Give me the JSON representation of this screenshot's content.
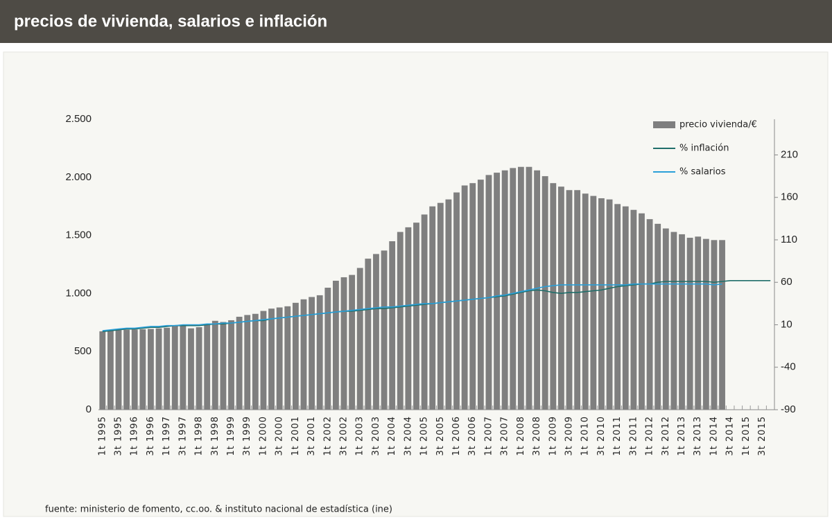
{
  "header": {
    "title": "precios de vivienda, salarios e inflación"
  },
  "chart_data": {
    "type": "bar-line",
    "categories": [
      "1t 1995",
      null,
      "3t 1995",
      null,
      "1t 1996",
      null,
      "3t 1996",
      null,
      "1t 1997",
      null,
      "3t 1997",
      null,
      "1t 1998",
      null,
      "3t 1998",
      null,
      "1t 1999",
      null,
      "3t 1999",
      null,
      "1t 2000",
      null,
      "3t 2000",
      null,
      "1t 2001",
      null,
      "3t 2001",
      null,
      "1t 2002",
      null,
      "3t 2002",
      null,
      "1t 2003",
      null,
      "3t 2003",
      null,
      "1t 2004",
      null,
      "3t 2004",
      null,
      "1t 2005",
      null,
      "3t 2005",
      null,
      "1t 2006",
      null,
      "3t 2006",
      null,
      "1t 2007",
      null,
      "3t 2007",
      null,
      "1t 2008",
      null,
      "3t 2008",
      null,
      "1t 2009",
      null,
      "3t 2009",
      null,
      "1t 2010",
      null,
      "3t 2010",
      null,
      "1t 2011",
      null,
      "3t 2011",
      null,
      "1t 2012",
      null,
      "3t 2012",
      null,
      "1t 2013",
      null,
      "3t 2013",
      null,
      "1t 2014",
      null,
      "3t 2014",
      null,
      "1t 2015",
      null,
      "3t 2015",
      null
    ],
    "series": [
      {
        "name": "precio vivienda/€",
        "type": "bar",
        "color": "#7f7f7f",
        "values": [
          675,
          680,
          685,
          688,
          690,
          692,
          695,
          700,
          705,
          720,
          725,
          700,
          710,
          740,
          765,
          755,
          770,
          800,
          815,
          825,
          850,
          870,
          880,
          890,
          920,
          950,
          970,
          985,
          1050,
          1110,
          1140,
          1160,
          1220,
          1300,
          1340,
          1370,
          1450,
          1530,
          1570,
          1610,
          1680,
          1750,
          1780,
          1810,
          1870,
          1930,
          1950,
          1980,
          2020,
          2040,
          2060,
          2080,
          2090,
          2090,
          2060,
          2010,
          1950,
          1920,
          1890,
          1890,
          1860,
          1840,
          1820,
          1810,
          1770,
          1750,
          1720,
          1690,
          1640,
          1600,
          1560,
          1530,
          1510,
          1480,
          1490,
          1470,
          1460,
          1460,
          null,
          null,
          null,
          null,
          null,
          null
        ]
      },
      {
        "name": "% inflación",
        "type": "line",
        "axis": "y2",
        "color": "#1f6e6a",
        "values": [
          2,
          3,
          4,
          5,
          5,
          6,
          7,
          7,
          8,
          9,
          9,
          9,
          9,
          10,
          11,
          11,
          12,
          13,
          14,
          15,
          15,
          17,
          18,
          19,
          20,
          21,
          22,
          23,
          24,
          25,
          26,
          26,
          27,
          28,
          29,
          29,
          30,
          31,
          32,
          33,
          34,
          35,
          36,
          37,
          38,
          39,
          40,
          41,
          42,
          43,
          44,
          46,
          48,
          50,
          51,
          50,
          48,
          47,
          48,
          48,
          49,
          50,
          51,
          53,
          55,
          56,
          57,
          58,
          58,
          60,
          61,
          61,
          61,
          61,
          61,
          61,
          60,
          61,
          62,
          62,
          62,
          62,
          62,
          62
        ]
      },
      {
        "name": "% salarios",
        "type": "line",
        "axis": "y2",
        "color": "#2a9fd8",
        "values": [
          3,
          4,
          5,
          6,
          6,
          7,
          8,
          8,
          9,
          9,
          10,
          10,
          10,
          11,
          11,
          12,
          12,
          13,
          14,
          15,
          16,
          17,
          18,
          19,
          20,
          21,
          22,
          23,
          24,
          25,
          26,
          27,
          28,
          29,
          30,
          31,
          31,
          32,
          33,
          34,
          35,
          35,
          36,
          37,
          38,
          39,
          40,
          41,
          42,
          44,
          45,
          47,
          49,
          51,
          53,
          55,
          56,
          57,
          57,
          57,
          57,
          57,
          57,
          57,
          57,
          57,
          58,
          58,
          58,
          58,
          58,
          58,
          58,
          58,
          58,
          58,
          57,
          58,
          null,
          null,
          null,
          null,
          null,
          null
        ]
      }
    ],
    "ylim": [
      0,
      2500
    ],
    "yticks": [
      0,
      500,
      {
        "value": 1000,
        "label": "1.000"
      },
      {
        "value": 1500,
        "label": "1.500"
      },
      {
        "value": 2000,
        "label": "2.000"
      },
      {
        "value": 2500,
        "label": "2.500"
      }
    ],
    "y2lim": [
      -90,
      252
    ],
    "y2ticks": [
      -90,
      -40,
      10,
      60,
      110,
      160,
      210
    ],
    "legend": "top-right",
    "source": "fuente: ministerio de fomento, cc.oo. & instituto nacional de estadística (ine)"
  }
}
